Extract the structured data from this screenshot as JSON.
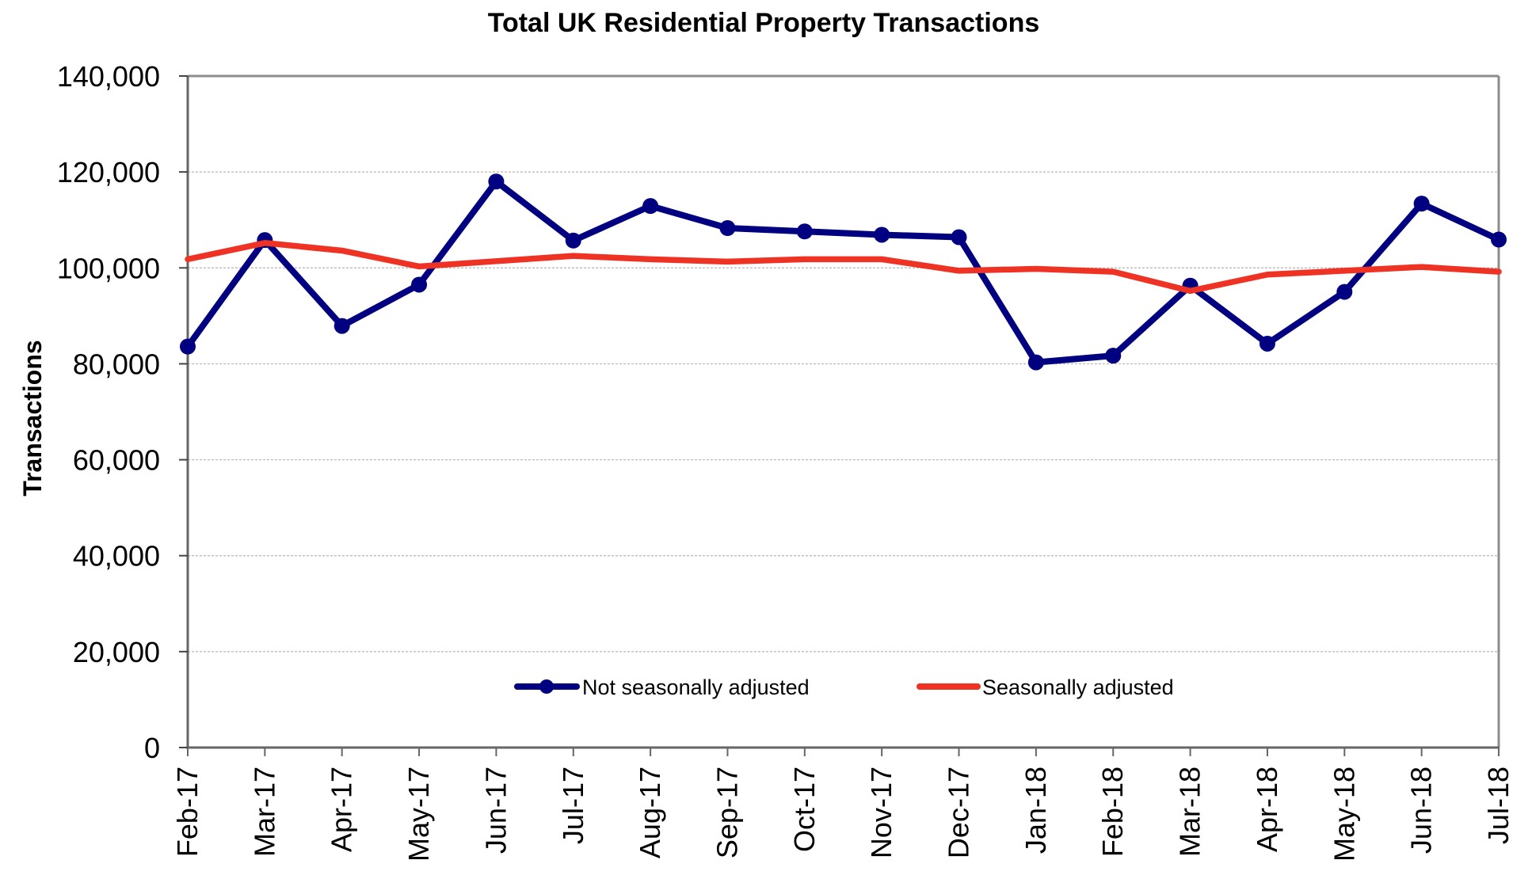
{
  "chart_data": {
    "type": "line",
    "title": "Total UK Residential Property Transactions",
    "xlabel": "",
    "ylabel": "Transactions",
    "ylim": [
      0,
      140000
    ],
    "yticks": [
      0,
      20000,
      40000,
      60000,
      80000,
      100000,
      120000,
      140000
    ],
    "ytick_labels": [
      "0",
      "20,000",
      "40,000",
      "60,000",
      "80,000",
      "100,000",
      "120,000",
      "140,000"
    ],
    "grid": true,
    "legend_position": "bottom-center (inside plot)",
    "categories": [
      "Feb-17",
      "Mar-17",
      "Apr-17",
      "May-17",
      "Jun-17",
      "Jul-17",
      "Aug-17",
      "Sep-17",
      "Oct-17",
      "Nov-17",
      "Dec-17",
      "Jan-18",
      "Feb-18",
      "Mar-18",
      "Apr-18",
      "May-18",
      "Jun-18",
      "Jul-18"
    ],
    "series": [
      {
        "name": "Not seasonally adjusted",
        "color": "#000080",
        "marker": "circle",
        "values": [
          83600,
          105800,
          87900,
          96500,
          118000,
          105700,
          112900,
          108300,
          107600,
          106900,
          106400,
          80300,
          81700,
          96300,
          84200,
          95000,
          113400,
          105900
        ]
      },
      {
        "name": "Seasonally adjusted",
        "color": "#EE3224",
        "marker": "none",
        "values": [
          101800,
          105200,
          103600,
          100300,
          101400,
          102500,
          101800,
          101300,
          101800,
          101800,
          99400,
          99800,
          99200,
          95200,
          98600,
          99400,
          100200,
          99200
        ]
      }
    ]
  }
}
